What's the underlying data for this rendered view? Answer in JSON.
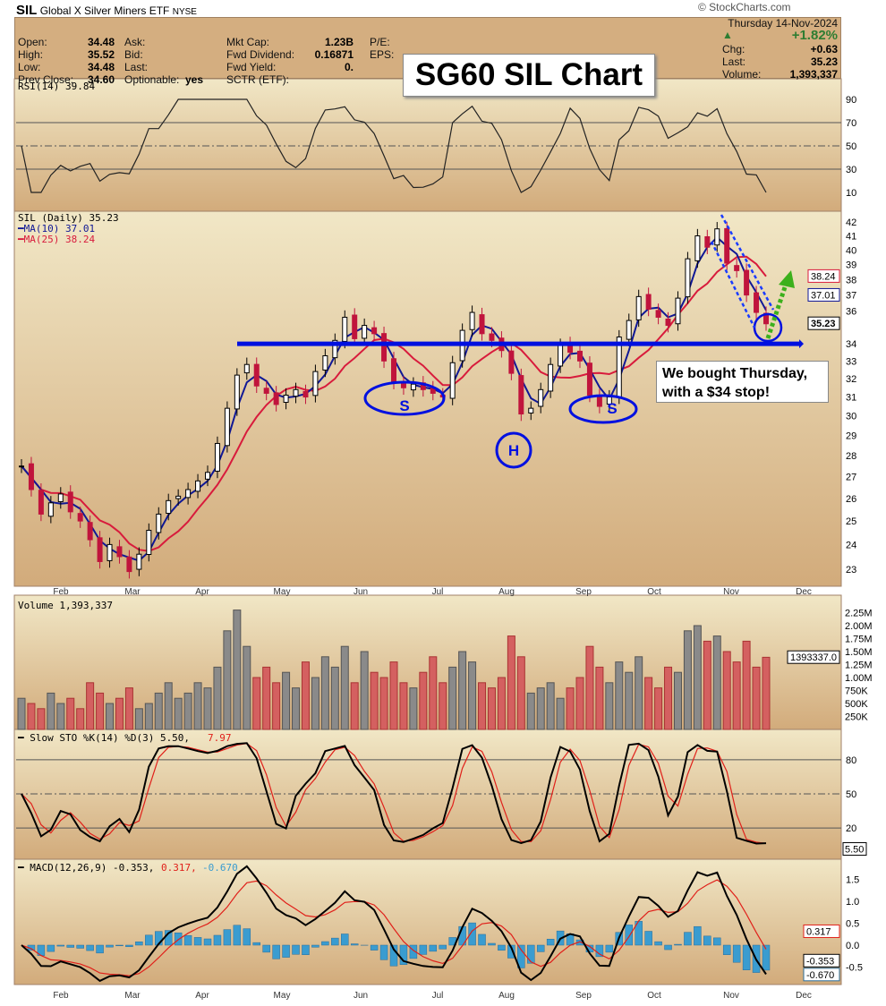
{
  "header": {
    "symbol": "SIL",
    "name": "Global X Silver Miners ETF",
    "exchange": "NYSE",
    "copyright": "© StockCharts.com",
    "date": "Thursday  14-Nov-2024",
    "pct_change": "+1.82%",
    "up_color": "#2e7d32"
  },
  "info": {
    "col1": [
      [
        "Open:",
        "34.48"
      ],
      [
        "High:",
        "35.52"
      ],
      [
        "Low:",
        "34.48"
      ],
      [
        "Prev Close:",
        "34.60"
      ]
    ],
    "col2": [
      [
        "Ask:",
        ""
      ],
      [
        "Bid:",
        ""
      ],
      [
        "Last:",
        ""
      ],
      [
        "Optionable:",
        "yes"
      ]
    ],
    "col3": [
      [
        "Mkt Cap:",
        "1.23B"
      ],
      [
        "Fwd Dividend:",
        "0.16871"
      ],
      [
        "Fwd Yield:",
        "0."
      ],
      [
        "SCTR (ETF):",
        ""
      ]
    ],
    "col4": [
      [
        "P/E:",
        ""
      ],
      [
        "EPS:",
        ""
      ]
    ],
    "right": [
      [
        "Chg:",
        "+0.63"
      ],
      [
        "Last:",
        "35.23"
      ],
      [
        "Volume:",
        "1,393,337"
      ]
    ]
  },
  "overlay_title": "SG60 SIL Chart",
  "annotation": {
    "line1": "We bought Thursday,",
    "line2": "with a $34 stop!"
  },
  "pattern_labels": {
    "s1": "S",
    "h": "H",
    "s2": "S"
  },
  "chart_data": {
    "type": "candlestick",
    "months": [
      "Feb",
      "Mar",
      "Apr",
      "May",
      "Jun",
      "Jul",
      "Aug",
      "Sep",
      "Oct",
      "Nov",
      "Dec"
    ],
    "price": {
      "legend": "SIL (Daily) 35.23",
      "ma10": "MA(10) 37.01",
      "ma25": "MA(25) 38.24",
      "ticks": [
        42,
        41,
        40,
        39,
        38,
        37,
        36,
        34,
        33,
        32,
        31,
        30,
        29,
        28,
        27,
        26,
        25,
        24,
        23
      ],
      "ylim": [
        22.6,
        42.8
      ],
      "scale": "log",
      "closes": [
        27.5,
        26.4,
        25.3,
        25.8,
        26.2,
        25.4,
        25.0,
        24.2,
        23.3,
        24.0,
        23.5,
        22.9,
        23.6,
        24.6,
        25.3,
        25.9,
        26.1,
        26.4,
        26.8,
        27.2,
        28.6,
        30.4,
        32.2,
        32.8,
        31.6,
        31.2,
        30.6,
        31.1,
        31.4,
        31.0,
        32.4,
        33.3,
        34.2,
        35.6,
        34.3,
        35.1,
        34.6,
        33.0,
        31.8,
        31.5,
        31.7,
        31.4,
        31.2,
        31.0,
        32.9,
        34.8,
        35.9,
        34.6,
        34.2,
        33.6,
        32.3,
        30.1,
        30.4,
        31.4,
        32.8,
        33.9,
        33.5,
        33.0,
        31.1,
        30.5,
        31.0,
        34.4,
        35.4,
        36.9,
        36.1,
        35.6,
        35.1,
        36.8,
        39.4,
        41.0,
        40.2,
        41.5,
        39.1,
        38.6,
        37.0,
        35.9,
        35.2
      ],
      "last_labels": {
        "ma25": "38.24",
        "ma10": "37.01",
        "close": "35.23"
      },
      "support": 34
    },
    "rsi": {
      "legend": "RSI(14) 39.84",
      "ticks": [
        90,
        70,
        50,
        30,
        10
      ]
    },
    "volume": {
      "legend": "Volume 1,393,337",
      "ticks": [
        "2.25M",
        "2.00M",
        "1.75M",
        "1.50M",
        "1.25M",
        "1.00M",
        "750K",
        "500K",
        "250K"
      ],
      "last": "1393337.0",
      "values_m": [
        0.6,
        0.5,
        0.4,
        0.7,
        0.5,
        0.6,
        0.4,
        0.9,
        0.7,
        0.5,
        0.6,
        0.8,
        0.4,
        0.5,
        0.7,
        0.9,
        0.6,
        0.7,
        0.9,
        0.8,
        1.2,
        1.9,
        2.3,
        1.6,
        1.0,
        1.2,
        0.9,
        1.1,
        0.8,
        1.3,
        1.0,
        1.4,
        1.2,
        1.6,
        0.9,
        1.5,
        1.1,
        1.0,
        1.3,
        0.9,
        0.8,
        1.1,
        1.4,
        0.9,
        1.2,
        1.5,
        1.3,
        0.9,
        0.8,
        1.0,
        1.8,
        1.4,
        0.7,
        0.8,
        0.9,
        0.6,
        0.8,
        1.0,
        1.6,
        1.2,
        0.9,
        1.3,
        1.1,
        1.4,
        1.0,
        0.8,
        1.2,
        1.1,
        1.9,
        2.0,
        1.7,
        1.8,
        1.5,
        1.3,
        1.7,
        1.2,
        1.39
      ]
    },
    "sto": {
      "legend_k": "Slow STO %K(14) %D(3) 5.50,",
      "legend_d": "7.97",
      "ticks": [
        80,
        50,
        20
      ],
      "last": "5.50"
    },
    "macd": {
      "legend": "MACD(12,26,9) -0.353,",
      "legend_signal": "0.317,",
      "legend_hist": "-0.670",
      "ticks": [
        "1.5",
        "1.0",
        "0.5",
        "0.0",
        "-0.5"
      ],
      "last_macd": "-0.353",
      "last_signal": "0.317",
      "last_hist": "-0.670"
    }
  }
}
